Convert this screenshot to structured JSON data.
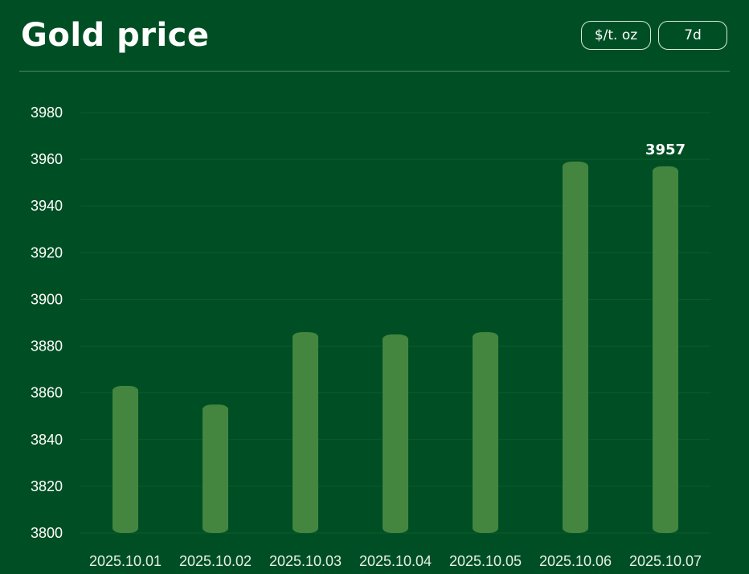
{
  "header": {
    "title": "Gold price",
    "unit_button": "$/t. oz",
    "range_button": "7d"
  },
  "colors": {
    "background": "#004f24",
    "bar": "#448640",
    "grid": "#0c5a2c",
    "text": "#ffffff"
  },
  "chart_data": {
    "type": "bar",
    "title": "Gold price",
    "xlabel": "",
    "ylabel": "",
    "categories": [
      "2025.10.01",
      "2025.10.02",
      "2025.10.03",
      "2025.10.04",
      "2025.10.05",
      "2025.10.06",
      "2025.10.07"
    ],
    "values": [
      3863,
      3855,
      3886,
      3885,
      3886,
      3959,
      3957
    ],
    "ylim": [
      3800,
      3980
    ],
    "yticks": [
      3800,
      3820,
      3840,
      3860,
      3880,
      3900,
      3920,
      3940,
      3960,
      3980
    ],
    "data_labels": [
      {
        "category": "2025.10.07",
        "text": "3957"
      }
    ],
    "grid": true,
    "legend": "none"
  }
}
